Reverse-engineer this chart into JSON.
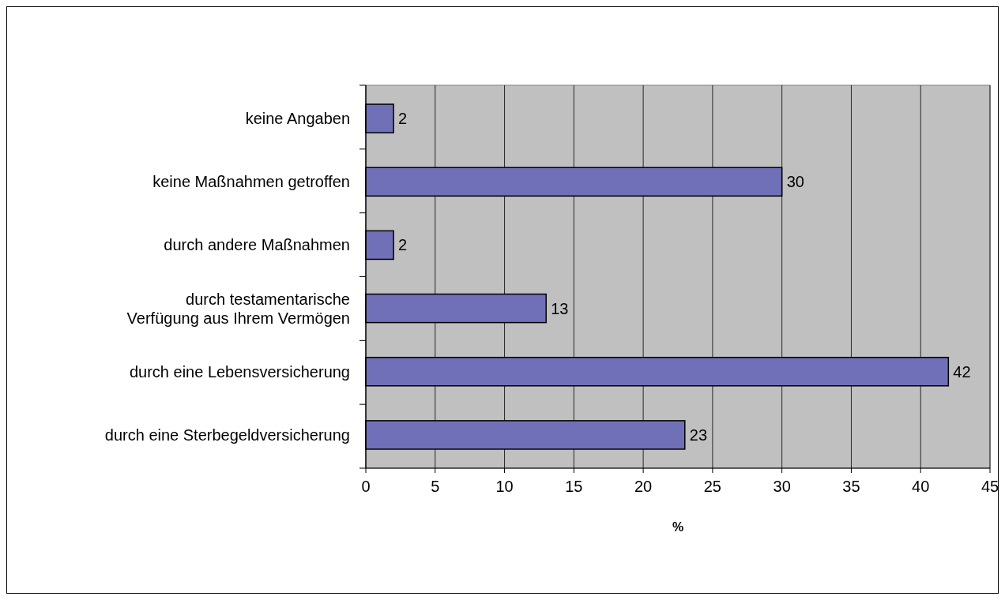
{
  "chart_data": {
    "type": "bar",
    "orientation": "horizontal",
    "xlabel": "%",
    "categories": [
      "keine Angaben",
      "keine Maßnahmen getroffen",
      "durch andere Maßnahmen",
      "durch testamentarische\nVerfügung aus Ihrem Vermögen",
      "durch eine Lebensversicherung",
      "durch eine Sterbegeldversicherung"
    ],
    "values": [
      2,
      30,
      2,
      13,
      42,
      23
    ],
    "color": "#7070b8",
    "xlim": [
      0,
      45
    ],
    "xticks": [
      0,
      5,
      10,
      15,
      20,
      25,
      30,
      35,
      40,
      45
    ],
    "grid": "x",
    "data_labels": true
  }
}
